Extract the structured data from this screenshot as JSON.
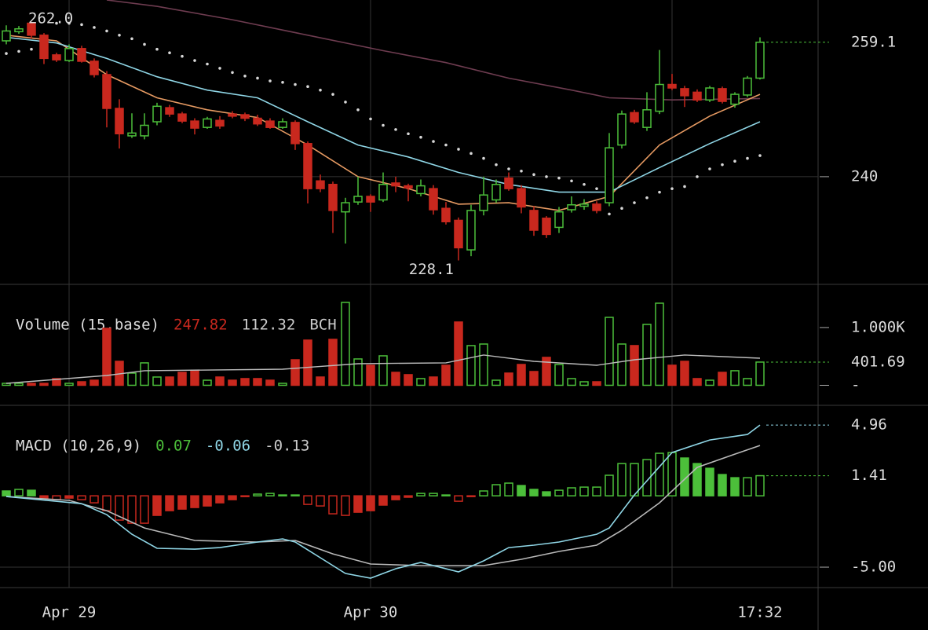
{
  "chart_data": [
    {
      "type": "candlestick",
      "xlim": [
        -0.5,
        64.625
      ],
      "ylim": [
        224.7,
        265.1
      ],
      "yticks": [
        240
      ],
      "grid": true,
      "xgrid": [
        5,
        29,
        53
      ],
      "up_color": "#4cbf3a",
      "down_color": "#c9281e",
      "candles": {
        "x": [
          0,
          1,
          2,
          3,
          4,
          5,
          6,
          7,
          8,
          9,
          10,
          11,
          12,
          13,
          14,
          15,
          16,
          17,
          18,
          19,
          20,
          21,
          22,
          23,
          24,
          25,
          26,
          27,
          28,
          29,
          30,
          31,
          32,
          33,
          34,
          35,
          36,
          37,
          38,
          39,
          40,
          41,
          42,
          43,
          44,
          45,
          46,
          47,
          48,
          49,
          50,
          51,
          52,
          53,
          54,
          55,
          56,
          57,
          58,
          59,
          60
        ],
        "open": [
          259.3,
          260.6,
          261.8,
          260.1,
          257.3,
          256.5,
          258.2,
          256.4,
          254.5,
          249.7,
          245.8,
          245.8,
          247.8,
          249.8,
          248.9,
          247.9,
          247.0,
          248.0,
          248.9,
          248.8,
          248.3,
          247.9,
          247.0,
          247.7,
          244.7,
          239.4,
          238.9,
          235.0,
          236.4,
          237.2,
          236.7,
          239.1,
          238.7,
          237.6,
          238.3,
          235.5,
          233.8,
          229.6,
          235.2,
          236.7,
          239.8,
          238.3,
          235.2,
          234.1,
          232.8,
          235.3,
          235.8,
          236.1,
          236.3,
          244.5,
          249.1,
          247.0,
          249.3,
          253.1,
          252.5,
          252.0,
          250.9,
          252.5,
          250.3,
          251.6,
          254.0
        ],
        "high": [
          261.5,
          261.4,
          262.0,
          260.4,
          257.6,
          258.8,
          258.6,
          256.8,
          255.0,
          251.0,
          249.0,
          249.0,
          250.5,
          250.2,
          249.2,
          248.3,
          248.5,
          248.6,
          249.3,
          249.1,
          248.8,
          248.3,
          248.3,
          248.0,
          245.0,
          240.3,
          239.3,
          237.0,
          240.0,
          237.5,
          240.6,
          240.0,
          239.0,
          239.6,
          238.8,
          236.4,
          234.2,
          236.0,
          240.0,
          239.6,
          240.6,
          238.8,
          235.8,
          234.4,
          235.7,
          237.2,
          236.8,
          236.5,
          246.2,
          249.4,
          249.5,
          252.0,
          258.0,
          254.6,
          252.9,
          252.4,
          252.9,
          252.8,
          252.0,
          254.3,
          259.8
        ],
        "low": [
          258.8,
          260.3,
          259.6,
          256.0,
          256.3,
          256.3,
          256.2,
          254.1,
          247.0,
          244.0,
          245.5,
          245.3,
          247.3,
          248.5,
          247.6,
          246.0,
          246.8,
          246.8,
          248.3,
          247.9,
          247.2,
          246.8,
          246.8,
          243.8,
          236.2,
          237.8,
          232.0,
          230.5,
          236.0,
          235.0,
          236.4,
          237.8,
          236.5,
          237.2,
          234.6,
          233.2,
          228.1,
          228.7,
          234.5,
          236.3,
          238.0,
          234.8,
          231.6,
          231.3,
          232.0,
          234.9,
          235.3,
          234.8,
          235.8,
          244.0,
          247.5,
          246.5,
          248.9,
          252.3,
          249.9,
          250.6,
          250.6,
          250.4,
          249.8,
          251.3,
          253.8
        ],
        "close": [
          260.7,
          261.0,
          260.1,
          256.8,
          256.6,
          258.2,
          256.4,
          254.5,
          249.7,
          246.1,
          246.2,
          247.3,
          250.0,
          248.9,
          247.9,
          246.9,
          248.2,
          247.2,
          248.6,
          248.3,
          247.5,
          247.0,
          247.8,
          244.7,
          238.3,
          238.3,
          235.2,
          236.3,
          237.2,
          236.4,
          238.9,
          238.7,
          238.4,
          238.7,
          235.3,
          233.6,
          229.9,
          235.2,
          237.4,
          238.9,
          238.3,
          235.7,
          232.4,
          231.8,
          235.0,
          236.0,
          236.1,
          235.2,
          244.1,
          248.9,
          247.8,
          249.5,
          253.1,
          252.6,
          251.5,
          250.9,
          252.6,
          250.7,
          251.7,
          254.0,
          259.1
        ]
      },
      "lines": [
        {
          "color": "#6e3c50",
          "x": [
            8,
            12,
            18,
            24,
            30,
            35,
            40,
            45,
            48,
            53,
            60
          ],
          "values": [
            265.1,
            264.2,
            262.3,
            260.1,
            257.9,
            256.2,
            254.0,
            252.3,
            251.2,
            250.9,
            251.1
          ]
        },
        {
          "color": "#e69a62",
          "x": [
            0,
            4,
            8,
            12,
            16,
            20,
            24,
            28,
            32,
            36,
            40,
            44,
            48,
            52,
            56,
            60
          ],
          "values": [
            260.1,
            259.3,
            254.5,
            251.2,
            249.5,
            248.4,
            244.5,
            240.0,
            238.3,
            236.1,
            236.3,
            235.2,
            237.2,
            244.5,
            248.6,
            251.7
          ]
        },
        {
          "color": "#8fd6e6",
          "x": [
            0,
            4,
            8,
            12,
            16,
            20,
            24,
            28,
            32,
            36,
            40,
            44,
            48,
            52,
            56,
            60
          ],
          "values": [
            259.8,
            259.0,
            256.8,
            254.2,
            252.3,
            251.2,
            247.8,
            244.5,
            242.8,
            240.6,
            238.9,
            237.8,
            237.8,
            241.3,
            244.7,
            247.8
          ]
        }
      ],
      "dots": {
        "color": "#d8d8d8",
        "x": [
          0,
          1,
          2,
          4,
          5,
          6,
          7,
          8,
          9,
          10,
          11,
          12,
          13,
          14,
          15,
          16,
          17,
          18,
          19,
          20,
          21,
          22,
          23,
          24,
          25,
          26,
          27,
          28,
          29,
          30,
          31,
          32,
          33,
          34,
          35,
          36,
          37,
          38,
          39,
          40,
          41,
          42,
          43,
          44,
          45,
          46,
          47,
          48,
          49,
          50,
          51,
          52,
          53,
          54,
          55,
          56,
          57,
          58,
          59,
          60
        ],
        "values": [
          257.5,
          257.8,
          258.1,
          261.8,
          261.8,
          261.6,
          261.2,
          260.7,
          260.1,
          259.6,
          258.8,
          258.1,
          257.6,
          257.1,
          256.5,
          256.0,
          255.4,
          254.8,
          254.3,
          254.0,
          253.6,
          253.4,
          253.1,
          252.8,
          252.3,
          251.7,
          250.6,
          249.5,
          248.2,
          247.3,
          246.7,
          246.1,
          245.6,
          245.0,
          244.5,
          243.9,
          243.3,
          242.6,
          241.7,
          241.1,
          240.8,
          240.3,
          240.0,
          239.8,
          239.4,
          238.9,
          238.3,
          234.7,
          235.5,
          236.3,
          237.0,
          237.8,
          238.3,
          238.6,
          240.0,
          241.1,
          241.7,
          242.2,
          242.6,
          243.0
        ]
      },
      "annotations": [
        {
          "text": "262.0",
          "x": 2,
          "y": 262.0,
          "anchor": "start"
        },
        {
          "text": "228.1",
          "x": 36,
          "y": 228.1,
          "anchor": "end"
        }
      ]
    },
    {
      "type": "volume",
      "title": "Volume (15,base)",
      "readouts": [
        {
          "text": "247.82",
          "color": "#c9281e"
        },
        {
          "text": "112.32",
          "color": "#cccccc"
        },
        {
          "text": "BCH",
          "color": "#cccccc"
        }
      ],
      "xlim": [
        -0.5,
        64.625
      ],
      "ylim": [
        -347,
        1747
      ],
      "grid": false,
      "xgrid": [
        5,
        29,
        53
      ],
      "yticks": [
        {
          "value": 1000,
          "label": "1.000K"
        },
        {
          "value": 0,
          "label": "-"
        }
      ],
      "values": [
        34,
        34,
        34,
        34,
        116,
        34,
        61,
        88,
        986,
        415,
        211,
        388,
        143,
        143,
        224,
        252,
        88,
        143,
        88,
        116,
        116,
        88,
        34,
        442,
        782,
        143,
        795,
        1435,
        456,
        347,
        510,
        224,
        184,
        116,
        143,
        347,
        1095,
        687,
        714,
        88,
        211,
        360,
        238,
        483,
        360,
        116,
        61,
        61,
        1176,
        714,
        687,
        1054,
        1421,
        347,
        415,
        116,
        88,
        224,
        252,
        116,
        401.69
      ],
      "ma": {
        "color": "#bbbbbb",
        "x": [
          0,
          8,
          11,
          22,
          28,
          35,
          38,
          42,
          47,
          50,
          54,
          60
        ],
        "values": [
          34,
          170,
          252,
          279,
          374,
          388,
          524,
          415,
          347,
          442,
          524,
          469
        ]
      }
    },
    {
      "type": "macd",
      "title": "MACD (10,26,9)",
      "readouts": [
        {
          "text": "0.07",
          "color": "#4cbf3a"
        },
        {
          "text": "-0.06",
          "color": "#8fd6e6"
        },
        {
          "text": "-0.13",
          "color": "#cccccc"
        }
      ],
      "xlim": [
        -0.5,
        64.625
      ],
      "ylim": [
        -6.43,
        6.34
      ],
      "grid": true,
      "xgrid": [
        5,
        29,
        53
      ],
      "yticks": [
        {
          "value": -5,
          "label": "-5.00"
        }
      ],
      "xticks": [
        {
          "value": 5,
          "label": "Apr 29"
        },
        {
          "value": 29,
          "label": "Apr 30"
        },
        {
          "value": 60,
          "label": "17:32"
        }
      ],
      "histogram": {
        "values": [
          0.34,
          0.45,
          0.39,
          -0.16,
          -0.27,
          -0.16,
          -0.27,
          -0.49,
          -1.04,
          -1.7,
          -1.92,
          -1.92,
          -1.37,
          -1.04,
          -0.93,
          -0.82,
          -0.71,
          -0.49,
          -0.27,
          -0.05,
          0.12,
          0.17,
          0.06,
          0.06,
          -0.6,
          -0.71,
          -1.26,
          -1.37,
          -1.15,
          -1.04,
          -0.65,
          -0.27,
          -0.1,
          0.17,
          0.17,
          0.06,
          -0.38,
          -0.05,
          0.34,
          0.78,
          0.89,
          0.72,
          0.45,
          0.28,
          0.39,
          0.56,
          0.61,
          0.61,
          1.44,
          2.26,
          2.26,
          2.54,
          2.98,
          3.03,
          2.65,
          2.26,
          1.93,
          1.49,
          1.27,
          1.27,
          1.41
        ]
      },
      "macd": {
        "color": "#8fd6e6",
        "x": [
          0,
          6,
          8,
          10,
          12,
          15,
          17,
          20,
          22,
          23,
          25,
          27,
          29,
          31,
          33,
          36,
          38,
          40,
          42,
          44,
          47,
          48,
          50,
          53,
          56,
          59,
          60
        ],
        "values": [
          -0.05,
          -0.55,
          -1.32,
          -2.69,
          -3.68,
          -3.74,
          -3.63,
          -3.24,
          -3.02,
          -3.24,
          -4.34,
          -5.44,
          -5.77,
          -5.11,
          -4.67,
          -5.33,
          -4.56,
          -3.63,
          -3.46,
          -3.24,
          -2.69,
          -2.25,
          0.06,
          3.03,
          3.91,
          4.3,
          4.96
        ]
      },
      "signal": {
        "color": "#b8b8b8",
        "x": [
          0,
          5,
          8,
          11,
          15,
          20,
          23,
          26,
          29,
          33,
          38,
          41,
          44,
          47,
          49,
          52,
          55,
          58,
          60
        ],
        "values": [
          -0.05,
          -0.32,
          -1.04,
          -2.25,
          -3.13,
          -3.24,
          -3.13,
          -4.07,
          -4.78,
          -4.89,
          -4.89,
          -4.45,
          -3.9,
          -3.46,
          -2.42,
          -0.49,
          1.99,
          2.92,
          3.53
        ]
      }
    }
  ]
}
